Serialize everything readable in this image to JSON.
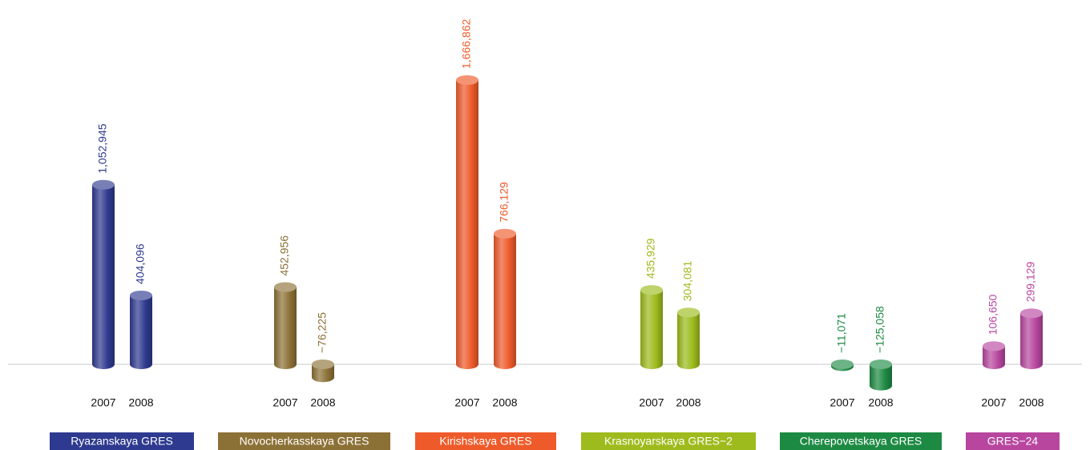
{
  "chart_data": {
    "type": "bar",
    "categories": [
      "Ryazanskaya GRES",
      "Novocherkasskaya GRES",
      "Kirishskaya GRES",
      "Krasnoyarskaya GRES−2",
      "Cherepovetskaya GRES",
      "GRES−24"
    ],
    "colors": [
      "#2e3a8f",
      "#8c7136",
      "#ee5a2a",
      "#9dbb1c",
      "#1d8a43",
      "#b8469f"
    ],
    "series": [
      {
        "name": "2007",
        "values": [
          1052945,
          452956,
          1666862,
          435929,
          -11071,
          106650
        ],
        "value_labels": [
          "1,052,945",
          "452,956",
          "1,666,862",
          "435,929",
          "−11,071",
          "106,650"
        ]
      },
      {
        "name": "2008",
        "values": [
          404096,
          -76225,
          766129,
          304081,
          -125058,
          299129
        ],
        "value_labels": [
          "404,096",
          "−76,225",
          "766,129",
          "304,081",
          "−125,058",
          "299,129"
        ]
      }
    ]
  }
}
